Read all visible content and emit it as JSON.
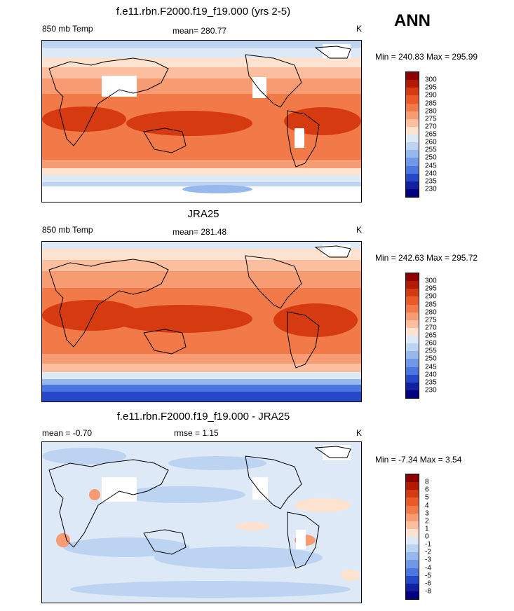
{
  "top_right_label": "ANN",
  "panels": [
    {
      "title": "f.e11.rbn.F2000.f19_f19.000 (yrs 2-5)",
      "left_label": "850 mb Temp",
      "center_label": "mean= 280.77",
      "right_label": "K",
      "minmax": "Min = 240.83 Max = 295.99"
    },
    {
      "title": "JRA25",
      "left_label": "850 mb Temp",
      "center_label": "mean= 281.48",
      "right_label": "K",
      "minmax": "Min = 242.63 Max = 295.72"
    },
    {
      "title": "f.e11.rbn.F2000.f19_f19.000 - JRA25",
      "left_label": "mean =  -0.70",
      "center_label": "rmse =   1.15",
      "right_label": "K",
      "minmax": "Min =  -7.34 Max =   3.54"
    }
  ],
  "colorbars": {
    "temp_levels": [
      "300",
      "295",
      "290",
      "285",
      "280",
      "275",
      "270",
      "265",
      "260",
      "255",
      "250",
      "245",
      "240",
      "235",
      "230"
    ],
    "temp_colors": [
      "#8b0000",
      "#b31b00",
      "#d63a10",
      "#ea5a26",
      "#f27a48",
      "#f79b72",
      "#fbbf9f",
      "#fde3cf",
      "#dde9f7",
      "#bcd3f2",
      "#97b8ec",
      "#7098e6",
      "#4a76df",
      "#2448c8",
      "#1020a0",
      "#000080"
    ],
    "diff_levels": [
      "8",
      "6",
      "5",
      "4",
      "3",
      "2",
      "1",
      "0",
      "-1",
      "-2",
      "-3",
      "-4",
      "-5",
      "-6",
      "-8"
    ],
    "diff_colors": [
      "#8b0000",
      "#b31b00",
      "#d63a10",
      "#ea5a26",
      "#f27a48",
      "#f79b72",
      "#fbbf9f",
      "#fde3cf",
      "#dde9f7",
      "#bcd3f2",
      "#97b8ec",
      "#7098e6",
      "#4a76df",
      "#2448c8",
      "#1020a0",
      "#000080"
    ]
  },
  "chart_data": [
    {
      "type": "heatmap",
      "title": "f.e11.rbn.F2000.f19_f19.000 (yrs 2-5)",
      "variable": "850 mb Temp",
      "units": "K",
      "mean": 280.77,
      "min": 240.83,
      "max": 295.99,
      "contour_levels": [
        230,
        235,
        240,
        245,
        250,
        255,
        260,
        265,
        270,
        275,
        280,
        285,
        290,
        295,
        300
      ]
    },
    {
      "type": "heatmap",
      "title": "JRA25",
      "variable": "850 mb Temp",
      "units": "K",
      "mean": 281.48,
      "min": 242.63,
      "max": 295.72,
      "contour_levels": [
        230,
        235,
        240,
        245,
        250,
        255,
        260,
        265,
        270,
        275,
        280,
        285,
        290,
        295,
        300
      ]
    },
    {
      "type": "heatmap",
      "title": "f.e11.rbn.F2000.f19_f19.000 - JRA25",
      "units": "K",
      "mean": -0.7,
      "rmse": 1.15,
      "min": -7.34,
      "max": 3.54,
      "contour_levels": [
        -8,
        -6,
        -5,
        -4,
        -3,
        -2,
        -1,
        0,
        1,
        2,
        3,
        4,
        5,
        6,
        8
      ]
    }
  ]
}
